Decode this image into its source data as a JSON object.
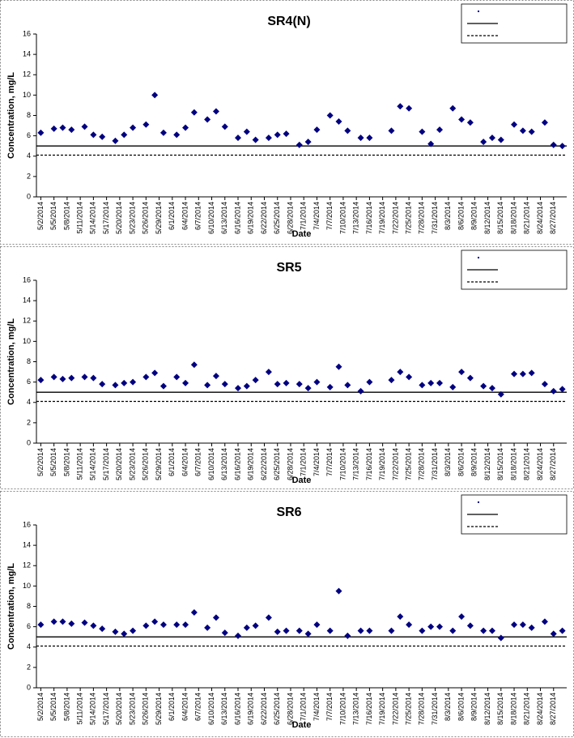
{
  "chart_data": [
    {
      "type": "scatter",
      "title": "SR4(N)",
      "xlabel": "Date",
      "ylabel": "Concentration, mg/L",
      "color": "#000080",
      "x": [
        "5/2/2014",
        "5/5/2014",
        "5/7/2014",
        "5/9/2014",
        "5/12/2014",
        "5/14/2014",
        "5/16/2014",
        "5/19/2014",
        "5/21/2014",
        "5/23/2014",
        "5/26/2014",
        "5/28/2014",
        "5/30/2014",
        "6/2/2014",
        "6/4/2014",
        "6/6/2014",
        "6/9/2014",
        "6/11/2014",
        "6/13/2014",
        "6/16/2014",
        "6/18/2014",
        "6/20/2014",
        "6/23/2014",
        "6/25/2014",
        "6/27/2014",
        "6/30/2014",
        "7/2/2014",
        "7/4/2014",
        "7/7/2014",
        "7/9/2014",
        "7/11/2014",
        "7/14/2014",
        "7/16/2014",
        "7/21/2014",
        "7/23/2014",
        "7/25/2014",
        "7/28/2014",
        "7/30/2014",
        "8/1/2014",
        "8/4/2014",
        "8/6/2014",
        "8/8/2014",
        "8/11/2014",
        "8/13/2014",
        "8/15/2014",
        "8/18/2014",
        "8/20/2014",
        "8/22/2014",
        "8/25/2014",
        "8/27/2014",
        "8/29/2014"
      ],
      "values": [
        6.3,
        6.7,
        6.8,
        6.6,
        6.9,
        6.1,
        5.9,
        5.5,
        6.1,
        6.8,
        7.1,
        10.0,
        6.3,
        6.1,
        6.8,
        8.3,
        7.6,
        8.4,
        6.9,
        5.8,
        6.4,
        5.6,
        5.8,
        6.1,
        6.2,
        5.1,
        5.4,
        6.6,
        8.0,
        7.4,
        6.5,
        5.8,
        5.8,
        6.5,
        8.9,
        8.7,
        6.4,
        5.2,
        6.6,
        8.7,
        7.6,
        7.3,
        5.4,
        5.8,
        5.6,
        7.1,
        6.5,
        6.4,
        7.3,
        5.1,
        5.0
      ],
      "xlim": [
        "5/1/2014",
        "8/30/2014"
      ],
      "xticks": [
        "5/2/2014",
        "5/5/2014",
        "5/8/2014",
        "5/11/2014",
        "5/14/2014",
        "5/17/2014",
        "5/20/2014",
        "5/23/2014",
        "5/26/2014",
        "5/29/2014",
        "6/1/2014",
        "6/4/2014",
        "6/7/2014",
        "6/10/2014",
        "6/13/2014",
        "6/16/2014",
        "6/19/2014",
        "6/22/2014",
        "6/25/2014",
        "6/28/2014",
        "7/1/2014",
        "7/4/2014",
        "7/7/2014",
        "7/10/2014",
        "7/13/2014",
        "7/16/2014",
        "7/19/2014",
        "7/22/2014",
        "7/25/2014",
        "7/28/2014",
        "7/31/2014",
        "8/3/2014",
        "8/6/2014",
        "8/9/2014",
        "8/12/2014",
        "8/15/2014",
        "8/18/2014",
        "8/21/2014",
        "8/24/2014",
        "8/27/2014"
      ],
      "ylim": [
        0,
        16
      ],
      "yticks": [
        0,
        2,
        4,
        6,
        8,
        10,
        12,
        14,
        16
      ],
      "reference_lines": [
        {
          "value": 5,
          "style": "solid"
        },
        {
          "value": 4.1,
          "style": "dashed"
        }
      ]
    },
    {
      "type": "scatter",
      "title": "SR5",
      "xlabel": "Date",
      "ylabel": "Concentration, mg/L",
      "color": "#000080",
      "x": [
        "5/2/2014",
        "5/5/2014",
        "5/7/2014",
        "5/9/2014",
        "5/12/2014",
        "5/14/2014",
        "5/16/2014",
        "5/19/2014",
        "5/21/2014",
        "5/23/2014",
        "5/26/2014",
        "5/28/2014",
        "5/30/2014",
        "6/2/2014",
        "6/4/2014",
        "6/6/2014",
        "6/9/2014",
        "6/11/2014",
        "6/13/2014",
        "6/16/2014",
        "6/18/2014",
        "6/20/2014",
        "6/23/2014",
        "6/25/2014",
        "6/27/2014",
        "6/30/2014",
        "7/2/2014",
        "7/4/2014",
        "7/7/2014",
        "7/9/2014",
        "7/11/2014",
        "7/14/2014",
        "7/16/2014",
        "7/21/2014",
        "7/23/2014",
        "7/25/2014",
        "7/28/2014",
        "7/30/2014",
        "8/1/2014",
        "8/4/2014",
        "8/6/2014",
        "8/8/2014",
        "8/11/2014",
        "8/13/2014",
        "8/15/2014",
        "8/18/2014",
        "8/20/2014",
        "8/22/2014",
        "8/25/2014",
        "8/27/2014",
        "8/29/2014"
      ],
      "values": [
        6.2,
        6.5,
        6.3,
        6.4,
        6.5,
        6.4,
        5.8,
        5.7,
        5.9,
        6.0,
        6.5,
        6.9,
        5.6,
        6.5,
        5.9,
        7.7,
        5.7,
        6.6,
        5.8,
        5.4,
        5.6,
        6.2,
        7.0,
        5.8,
        5.9,
        5.8,
        5.4,
        6.0,
        5.5,
        7.5,
        5.7,
        5.1,
        6.0,
        6.2,
        7.0,
        6.5,
        5.7,
        5.9,
        5.9,
        5.5,
        7.0,
        6.4,
        5.6,
        5.4,
        4.8,
        6.8,
        6.8,
        6.9,
        5.8,
        5.1,
        5.3
      ],
      "xlim": [
        "5/1/2014",
        "8/30/2014"
      ],
      "xticks": [
        "5/2/2014",
        "5/5/2014",
        "5/8/2014",
        "5/11/2014",
        "5/14/2014",
        "5/17/2014",
        "5/20/2014",
        "5/23/2014",
        "5/26/2014",
        "5/29/2014",
        "6/1/2014",
        "6/4/2014",
        "6/7/2014",
        "6/10/2014",
        "6/13/2014",
        "6/16/2014",
        "6/19/2014",
        "6/22/2014",
        "6/25/2014",
        "6/28/2014",
        "7/1/2014",
        "7/4/2014",
        "7/7/2014",
        "7/10/2014",
        "7/13/2014",
        "7/16/2014",
        "7/19/2014",
        "7/22/2014",
        "7/25/2014",
        "7/28/2014",
        "7/31/2014",
        "8/3/2014",
        "8/6/2014",
        "8/9/2014",
        "8/12/2014",
        "8/15/2014",
        "8/18/2014",
        "8/21/2014",
        "8/24/2014",
        "8/27/2014"
      ],
      "ylim": [
        0,
        16
      ],
      "yticks": [
        0,
        2,
        4,
        6,
        8,
        10,
        12,
        14,
        16
      ],
      "reference_lines": [
        {
          "value": 5,
          "style": "solid"
        },
        {
          "value": 4.1,
          "style": "dashed"
        }
      ]
    },
    {
      "type": "scatter",
      "title": "SR6",
      "xlabel": "Date",
      "ylabel": "Concentration, mg/L",
      "color": "#000080",
      "x": [
        "5/2/2014",
        "5/5/2014",
        "5/7/2014",
        "5/9/2014",
        "5/12/2014",
        "5/14/2014",
        "5/16/2014",
        "5/19/2014",
        "5/21/2014",
        "5/23/2014",
        "5/26/2014",
        "5/28/2014",
        "5/30/2014",
        "6/2/2014",
        "6/4/2014",
        "6/6/2014",
        "6/9/2014",
        "6/11/2014",
        "6/13/2014",
        "6/16/2014",
        "6/18/2014",
        "6/20/2014",
        "6/23/2014",
        "6/25/2014",
        "6/27/2014",
        "6/30/2014",
        "7/2/2014",
        "7/4/2014",
        "7/7/2014",
        "7/9/2014",
        "7/11/2014",
        "7/14/2014",
        "7/16/2014",
        "7/21/2014",
        "7/23/2014",
        "7/25/2014",
        "7/28/2014",
        "7/30/2014",
        "8/1/2014",
        "8/4/2014",
        "8/6/2014",
        "8/8/2014",
        "8/11/2014",
        "8/13/2014",
        "8/15/2014",
        "8/18/2014",
        "8/20/2014",
        "8/22/2014",
        "8/25/2014",
        "8/27/2014",
        "8/29/2014"
      ],
      "values": [
        6.2,
        6.5,
        6.5,
        6.3,
        6.4,
        6.1,
        5.8,
        5.5,
        5.3,
        5.6,
        6.1,
        6.5,
        6.2,
        6.2,
        6.2,
        7.4,
        5.9,
        6.9,
        5.4,
        5.1,
        5.9,
        6.1,
        6.9,
        5.5,
        5.6,
        5.6,
        5.3,
        6.2,
        5.6,
        9.5,
        5.1,
        5.6,
        5.6,
        5.6,
        7.0,
        6.2,
        5.6,
        6.0,
        6.0,
        5.6,
        7.0,
        6.1,
        5.6,
        5.6,
        4.9,
        6.2,
        6.2,
        5.9,
        6.5,
        5.3,
        5.6
      ],
      "xlim": [
        "5/1/2014",
        "8/30/2014"
      ],
      "xticks": [
        "5/2/2014",
        "5/5/2014",
        "5/8/2014",
        "5/11/2014",
        "5/14/2014",
        "5/17/2014",
        "5/20/2014",
        "5/23/2014",
        "5/26/2014",
        "5/29/2014",
        "6/1/2014",
        "6/4/2014",
        "6/7/2014",
        "6/10/2014",
        "6/13/2014",
        "6/16/2014",
        "6/19/2014",
        "6/22/2014",
        "6/25/2014",
        "6/28/2014",
        "7/1/2014",
        "7/4/2014",
        "7/7/2014",
        "7/10/2014",
        "7/13/2014",
        "7/16/2014",
        "7/19/2014",
        "7/22/2014",
        "7/25/2014",
        "7/28/2014",
        "7/31/2014",
        "8/3/2014",
        "8/6/2014",
        "8/9/2014",
        "8/12/2014",
        "8/15/2014",
        "8/18/2014",
        "8/21/2014",
        "8/24/2014",
        "8/27/2014"
      ],
      "ylim": [
        0,
        16
      ],
      "yticks": [
        0,
        2,
        4,
        6,
        8,
        10,
        12,
        14,
        16
      ],
      "reference_lines": [
        {
          "value": 5,
          "style": "solid"
        },
        {
          "value": 4.1,
          "style": "dashed"
        }
      ]
    }
  ]
}
